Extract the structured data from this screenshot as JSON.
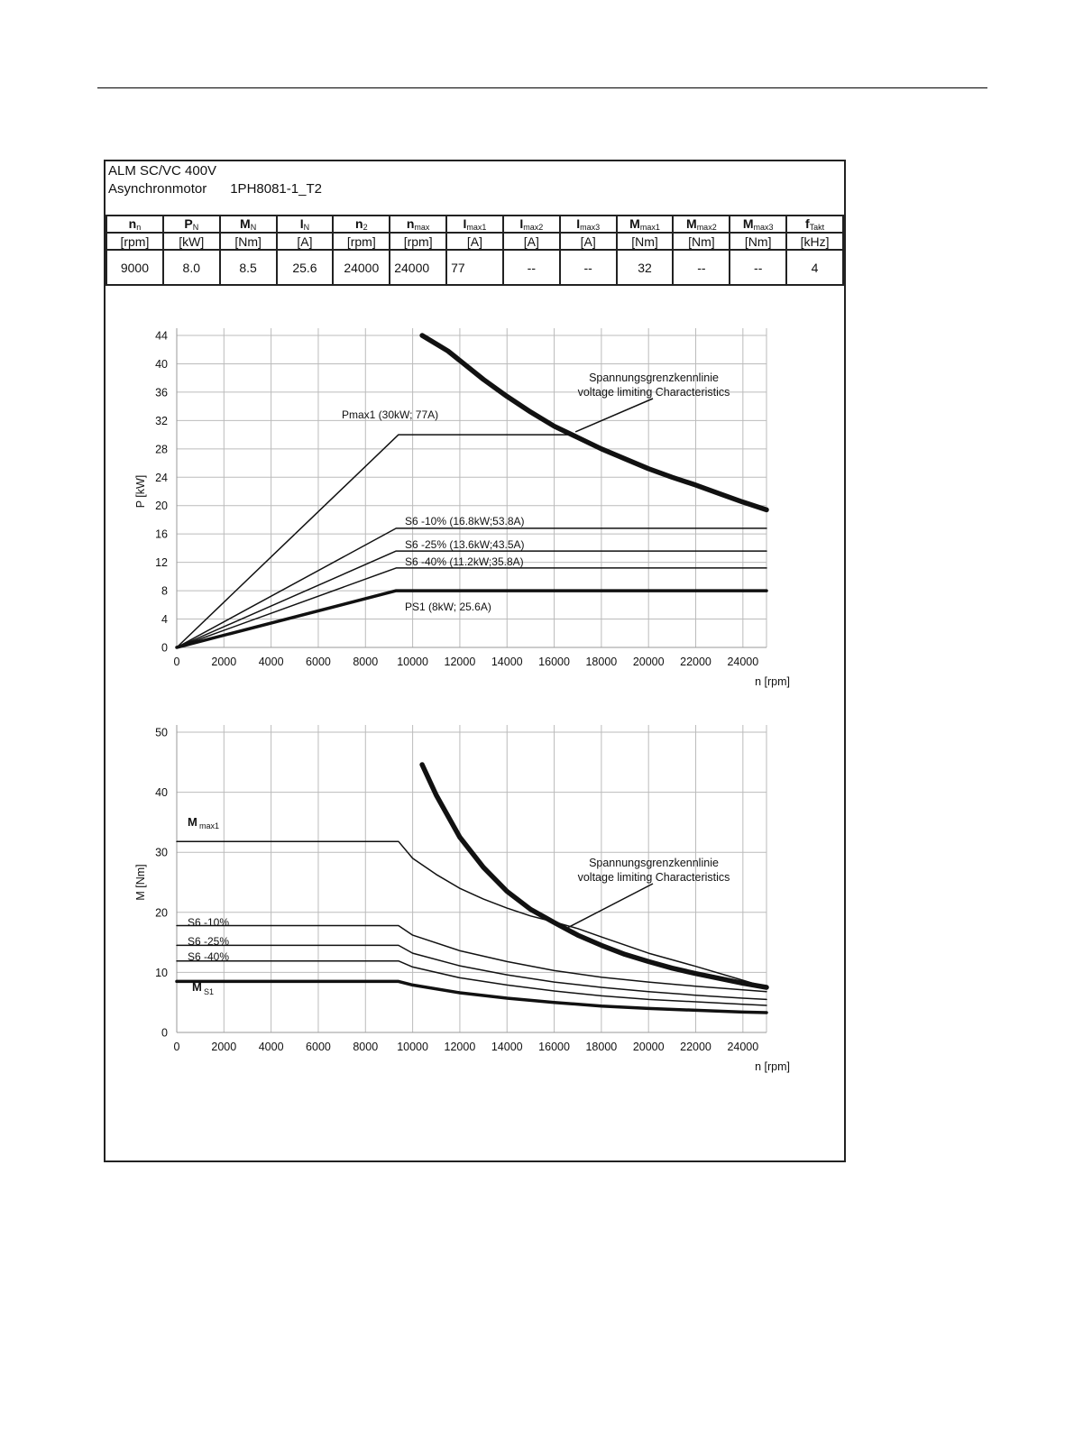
{
  "header": {
    "line1": "ALM SC/VC 400V",
    "motor_type": "Asynchronmotor",
    "model": "1PH8081-1_T2"
  },
  "spec_table": {
    "columns": [
      {
        "sym": "n",
        "sub": "n",
        "unit": "[rpm]",
        "value": "9000"
      },
      {
        "sym": "P",
        "sub": "N",
        "unit": "[kW]",
        "value": "8.0"
      },
      {
        "sym": "M",
        "sub": "N",
        "unit": "[Nm]",
        "value": "8.5"
      },
      {
        "sym": "I",
        "sub": "N",
        "unit": "[A]",
        "value": "25.6"
      },
      {
        "sym": "n",
        "sub": "2",
        "unit": "[rpm]",
        "value": "24000"
      },
      {
        "sym": "n",
        "sub": "max",
        "unit": "[rpm]",
        "value": "24000"
      },
      {
        "sym": "I",
        "sub": "max1",
        "unit": "[A]",
        "value": "77"
      },
      {
        "sym": "I",
        "sub": "max2",
        "unit": "[A]",
        "value": "--"
      },
      {
        "sym": "I",
        "sub": "max3",
        "unit": "[A]",
        "value": "--"
      },
      {
        "sym": "M",
        "sub": "max1",
        "unit": "[Nm]",
        "value": "32"
      },
      {
        "sym": "M",
        "sub": "max2",
        "unit": "[Nm]",
        "value": "--"
      },
      {
        "sym": "M",
        "sub": "max3",
        "unit": "[Nm]",
        "value": "--"
      },
      {
        "sym": "f",
        "sub": "Takt",
        "unit": "[kHz]",
        "value": "4"
      }
    ]
  },
  "chart_data": [
    {
      "type": "line",
      "xlabel": "n [rpm]",
      "ylabel": "P [kW]",
      "xlim": [
        0,
        25000
      ],
      "ylim": [
        0,
        44
      ],
      "xticks": [
        0,
        2000,
        4000,
        6000,
        8000,
        10000,
        12000,
        14000,
        16000,
        18000,
        20000,
        22000,
        24000
      ],
      "yticks": [
        0,
        4,
        8,
        12,
        16,
        20,
        24,
        28,
        32,
        36,
        40,
        44
      ],
      "grid": true,
      "series": [
        {
          "name": "Pmax1 (30kW; 77A)",
          "weight": "thin",
          "points": [
            [
              0,
              0
            ],
            [
              9400,
              30
            ],
            [
              16700,
              30
            ]
          ]
        },
        {
          "name": "S6 -10% (16.8kW;53.8A)",
          "weight": "thin",
          "points": [
            [
              0,
              0
            ],
            [
              9300,
              16.8
            ],
            [
              25000,
              16.8
            ]
          ]
        },
        {
          "name": "S6 -25% (13.6kW;43.5A)",
          "weight": "thin",
          "points": [
            [
              0,
              0
            ],
            [
              9300,
              13.6
            ],
            [
              25000,
              13.6
            ]
          ]
        },
        {
          "name": "S6 -40% (11.2kW;35.8A)",
          "weight": "thin",
          "points": [
            [
              0,
              0
            ],
            [
              9300,
              11.2
            ],
            [
              25000,
              11.2
            ]
          ]
        },
        {
          "name": "PS1 (8kW; 25.6A)",
          "weight": "thick",
          "points": [
            [
              0,
              0
            ],
            [
              9300,
              8
            ],
            [
              25000,
              8
            ]
          ]
        },
        {
          "name": "voltage limiting Characteristics",
          "weight": "heavy",
          "points": [
            [
              10400,
              44
            ],
            [
              11500,
              41.8
            ],
            [
              13000,
              37.8
            ],
            [
              14000,
              35.4
            ],
            [
              15000,
              33.2
            ],
            [
              16000,
              31.2
            ],
            [
              17000,
              29.6
            ],
            [
              18000,
              28
            ],
            [
              19000,
              26.6
            ],
            [
              20000,
              25.2
            ],
            [
              21000,
              24
            ],
            [
              22000,
              22.9
            ],
            [
              23000,
              21.7
            ],
            [
              24000,
              20.5
            ],
            [
              25000,
              19.4
            ]
          ]
        }
      ],
      "annotations": {
        "pmax1": "Pmax1 (30kW; 77A)",
        "s6_10": "S6 -10% (16.8kW;53.8A)",
        "s6_25": "S6 -25% (13.6kW;43.5A)",
        "s6_40": "S6 -40% (11.2kW;35.8A)",
        "ps1": "PS1 (8kW; 25.6A)",
        "vlc_de": "Spannungsgrenzkennlinie",
        "vlc_en": "voltage limiting Characteristics"
      }
    },
    {
      "type": "line",
      "xlabel": "n [rpm]",
      "ylabel": "M [Nm]",
      "xlim": [
        0,
        25000
      ],
      "ylim": [
        0,
        50
      ],
      "xticks": [
        0,
        2000,
        4000,
        6000,
        8000,
        10000,
        12000,
        14000,
        16000,
        18000,
        20000,
        22000,
        24000
      ],
      "yticks": [
        0,
        10,
        20,
        30,
        40,
        50
      ],
      "grid": true,
      "series": [
        {
          "name": "Mmax1",
          "weight": "thin",
          "points": [
            [
              0,
              31.8
            ],
            [
              9400,
              31.8
            ],
            [
              10000,
              29
            ],
            [
              11000,
              26.3
            ],
            [
              12000,
              24
            ],
            [
              13000,
              22.2
            ],
            [
              14000,
              20.7
            ],
            [
              15000,
              19.4
            ],
            [
              16000,
              18.4
            ],
            [
              17000,
              17.3
            ],
            [
              18000,
              15.9
            ],
            [
              20000,
              13.2
            ],
            [
              22000,
              11
            ],
            [
              24000,
              8.7
            ],
            [
              25000,
              7.5
            ]
          ]
        },
        {
          "name": "S6 -10%",
          "weight": "thin",
          "points": [
            [
              0,
              17.8
            ],
            [
              9400,
              17.8
            ],
            [
              10000,
              16.2
            ],
            [
              12000,
              13.6
            ],
            [
              14000,
              11.8
            ],
            [
              16000,
              10.3
            ],
            [
              18000,
              9.2
            ],
            [
              20000,
              8.4
            ],
            [
              22000,
              7.7
            ],
            [
              24000,
              7.1
            ],
            [
              25000,
              6.8
            ]
          ]
        },
        {
          "name": "S6 -25%",
          "weight": "thin",
          "points": [
            [
              0,
              14.5
            ],
            [
              9400,
              14.5
            ],
            [
              10000,
              13.2
            ],
            [
              12000,
              11.1
            ],
            [
              14000,
              9.6
            ],
            [
              16000,
              8.4
            ],
            [
              18000,
              7.5
            ],
            [
              20000,
              6.8
            ],
            [
              22000,
              6.2
            ],
            [
              24000,
              5.7
            ],
            [
              25000,
              5.5
            ]
          ]
        },
        {
          "name": "S6 -40%",
          "weight": "thin",
          "points": [
            [
              0,
              11.9
            ],
            [
              9400,
              11.9
            ],
            [
              10000,
              10.9
            ],
            [
              12000,
              9.1
            ],
            [
              14000,
              7.9
            ],
            [
              16000,
              6.9
            ],
            [
              18000,
              6.1
            ],
            [
              20000,
              5.5
            ],
            [
              22000,
              5.1
            ],
            [
              24000,
              4.7
            ],
            [
              25000,
              4.5
            ]
          ]
        },
        {
          "name": "MS1",
          "weight": "thick",
          "points": [
            [
              0,
              8.5
            ],
            [
              9400,
              8.5
            ],
            [
              10000,
              7.9
            ],
            [
              12000,
              6.6
            ],
            [
              14000,
              5.7
            ],
            [
              16000,
              5
            ],
            [
              18000,
              4.4
            ],
            [
              20000,
              4
            ],
            [
              22000,
              3.7
            ],
            [
              24000,
              3.4
            ],
            [
              25000,
              3.3
            ]
          ]
        },
        {
          "name": "voltage limiting Characteristics",
          "weight": "heavy",
          "points": [
            [
              10400,
              44.6
            ],
            [
              11000,
              39.5
            ],
            [
              12000,
              32.5
            ],
            [
              13000,
              27.5
            ],
            [
              14000,
              23.5
            ],
            [
              15000,
              20.5
            ],
            [
              16000,
              18.3
            ],
            [
              17000,
              16.2
            ],
            [
              18000,
              14.5
            ],
            [
              19000,
              13
            ],
            [
              20000,
              11.8
            ],
            [
              21000,
              10.7
            ],
            [
              22000,
              9.8
            ],
            [
              23000,
              9
            ],
            [
              24000,
              8.2
            ],
            [
              25000,
              7.5
            ]
          ]
        }
      ],
      "annotations": {
        "mmax1_sym": "M",
        "mmax1_sub": "max1",
        "s6_10": "S6 -10%",
        "s6_25": "S6 -25%",
        "s6_40": "S6 -40%",
        "ms1_sym": "M",
        "ms1_sub": "S1",
        "vlc_de": "Spannungsgrenzkennlinie",
        "vlc_en": "voltage limiting Characteristics"
      }
    }
  ]
}
